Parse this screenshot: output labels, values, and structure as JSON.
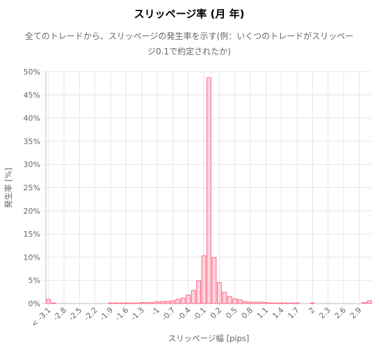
{
  "chart_data": {
    "type": "bar",
    "title": "スリッページ率 (月 年)",
    "subtitle_lines": [
      "全てのトレードから、スリッページの発生率を示す(例：いくつのトレードがスリッペー",
      "ジ0.1で約定されたか)"
    ],
    "xlabel": "スリッページ幅 [pips]",
    "ylabel": "発生率 [%]",
    "ylim": [
      0,
      50
    ],
    "y_ticks": [
      "0%",
      "5%",
      "10%",
      "15%",
      "20%",
      "25%",
      "30%",
      "35%",
      "40%",
      "45%",
      "50%"
    ],
    "x_tick_labels": [
      "< -3.1",
      "-2.8",
      "-2.5",
      "-2.2",
      "-1.9",
      "-1.6",
      "-1.3",
      "-1",
      "-0.7",
      "-0.4",
      "-0.1",
      "0.2",
      "0.5",
      "0.8",
      "1.1",
      "1.4",
      "1.7",
      "2",
      "2.3",
      "2.6",
      "2.9"
    ],
    "grid": true,
    "legend": "none",
    "colors": {
      "bar_fill": "#ffd6df",
      "bar_stroke": "#ff6384",
      "grid": "#e6e6e6"
    },
    "categories": [
      "< -3.1",
      "-3",
      "-2.9",
      "-2.8",
      "-2.7",
      "-2.6",
      "-2.5",
      "-2.4",
      "-2.3",
      "-2.2",
      "-2.1",
      "-2",
      "-1.9",
      "-1.8",
      "-1.7",
      "-1.6",
      "-1.5",
      "-1.4",
      "-1.3",
      "-1.2",
      "-1.1",
      "-1",
      "-0.9",
      "-0.8",
      "-0.7",
      "-0.6",
      "-0.5",
      "-0.4",
      "-0.3",
      "-0.2",
      "-0.1",
      "0",
      "0.1",
      "0.2",
      "0.3",
      "0.4",
      "0.5",
      "0.6",
      "0.7",
      "0.8",
      "0.9",
      "1",
      "1.1",
      "1.2",
      "1.3",
      "1.4",
      "1.5",
      "1.6",
      "1.7",
      "1.8",
      "1.9",
      "2",
      "2.1",
      "2.2",
      "2.3",
      "2.4",
      "2.5",
      "2.6",
      "2.7",
      "2.8",
      "2.9",
      "3",
      "> 3.1"
    ],
    "values": [
      0.9,
      0.1,
      0,
      0,
      0,
      0,
      0,
      0,
      0,
      0,
      0,
      0,
      0.1,
      0.1,
      0.1,
      0.1,
      0.1,
      0.1,
      0.2,
      0.2,
      0.2,
      0.4,
      0.4,
      0.5,
      0.6,
      0.9,
      1.2,
      1.8,
      2.8,
      4.9,
      10.3,
      48.7,
      9.9,
      4.5,
      2.4,
      1.5,
      1.0,
      0.8,
      0.4,
      0.3,
      0.3,
      0.3,
      0.2,
      0.1,
      0.1,
      0.1,
      0.1,
      0.1,
      0.1,
      0,
      0,
      0.1,
      0,
      0,
      0,
      0,
      0,
      0,
      0,
      0,
      0,
      0.2,
      0.6
    ]
  }
}
